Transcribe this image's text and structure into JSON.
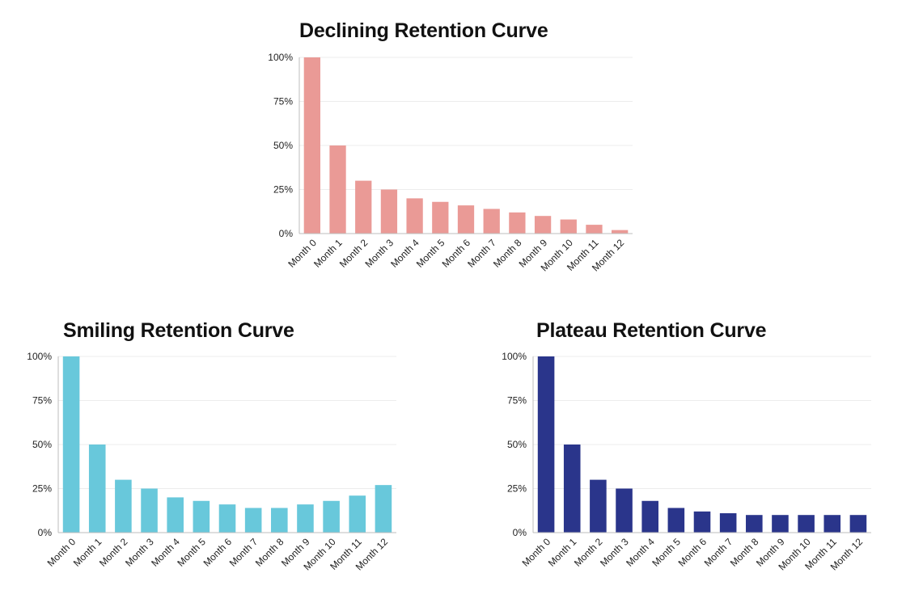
{
  "chart_data": [
    {
      "type": "bar",
      "title": "Declining Retention Curve",
      "categories": [
        "Month 0",
        "Month 1",
        "Month 2",
        "Month 3",
        "Month 4",
        "Month 5",
        "Month 6",
        "Month 7",
        "Month 8",
        "Month 9",
        "Month 10",
        "Month 11",
        "Month 12"
      ],
      "values": [
        100,
        50,
        30,
        25,
        20,
        18,
        16,
        14,
        12,
        10,
        8,
        5,
        2
      ],
      "ylim": [
        0,
        100
      ],
      "yticks": [
        0,
        25,
        50,
        75,
        100
      ],
      "ytick_labels": [
        "0%",
        "25%",
        "50%",
        "75%",
        "100%"
      ],
      "color": "#EA9A96",
      "grid": true
    },
    {
      "type": "bar",
      "title": "Smiling Retention Curve",
      "categories": [
        "Month 0",
        "Month 1",
        "Month 2",
        "Month 3",
        "Month 4",
        "Month 5",
        "Month 6",
        "Month 7",
        "Month 8",
        "Month 9",
        "Month 10",
        "Month 11",
        "Month 12"
      ],
      "values": [
        100,
        50,
        30,
        25,
        20,
        18,
        16,
        14,
        14,
        16,
        18,
        21,
        27
      ],
      "ylim": [
        0,
        100
      ],
      "yticks": [
        0,
        25,
        50,
        75,
        100
      ],
      "ytick_labels": [
        "0%",
        "25%",
        "50%",
        "75%",
        "100%"
      ],
      "color": "#68C8DB",
      "grid": true
    },
    {
      "type": "bar",
      "title": "Plateau Retention Curve",
      "categories": [
        "Month 0",
        "Month 1",
        "Month 2",
        "Month 3",
        "Month 4",
        "Month 5",
        "Month 6",
        "Month 7",
        "Month 8",
        "Month 9",
        "Month 10",
        "Month 11",
        "Month 12"
      ],
      "values": [
        100,
        50,
        30,
        25,
        18,
        14,
        12,
        11,
        10,
        10,
        10,
        10,
        10
      ],
      "ylim": [
        0,
        100
      ],
      "yticks": [
        0,
        25,
        50,
        75,
        100
      ],
      "ytick_labels": [
        "0%",
        "25%",
        "50%",
        "75%",
        "100%"
      ],
      "color": "#2A358B",
      "grid": true
    }
  ]
}
